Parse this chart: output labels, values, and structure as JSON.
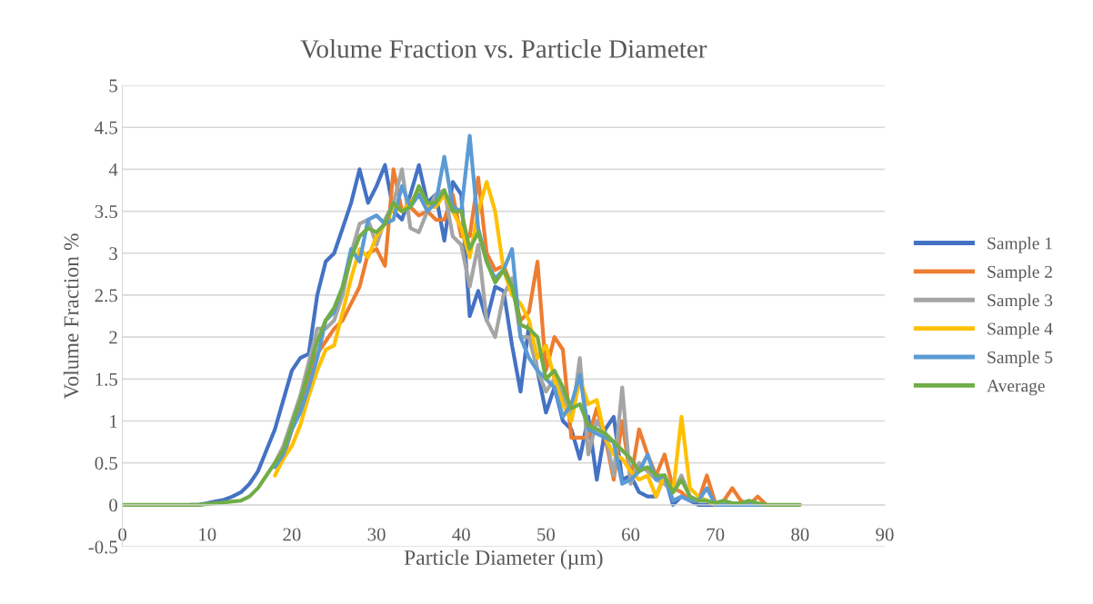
{
  "chart_data": {
    "type": "line",
    "title": "Volume Fraction vs. Particle Diameter",
    "xlabel": "Particle Diameter (µm)",
    "ylabel": "Volume Fraction %",
    "x": [
      0,
      1,
      2,
      3,
      4,
      5,
      6,
      7,
      8,
      9,
      10,
      11,
      12,
      13,
      14,
      15,
      16,
      17,
      18,
      19,
      20,
      21,
      22,
      23,
      24,
      25,
      26,
      27,
      28,
      29,
      30,
      31,
      32,
      33,
      34,
      35,
      36,
      37,
      38,
      39,
      40,
      41,
      42,
      43,
      44,
      45,
      46,
      47,
      48,
      49,
      50,
      51,
      52,
      53,
      54,
      55,
      56,
      57,
      58,
      59,
      60,
      61,
      62,
      63,
      64,
      65,
      66,
      67,
      68,
      69,
      70,
      71,
      72,
      73,
      74,
      75,
      76,
      77,
      78,
      79,
      80
    ],
    "series": [
      {
        "name": "Sample 1",
        "color": "#4472c4",
        "values": [
          null,
          null,
          null,
          null,
          null,
          null,
          null,
          null,
          0,
          0,
          0.02,
          0.04,
          0.06,
          0.1,
          0.15,
          0.25,
          0.4,
          0.65,
          0.9,
          1.25,
          1.6,
          1.75,
          1.8,
          2.5,
          2.9,
          3.0,
          3.3,
          3.6,
          4.0,
          3.6,
          3.8,
          4.05,
          3.5,
          3.4,
          3.7,
          4.05,
          3.6,
          3.7,
          3.15,
          3.85,
          3.7,
          2.25,
          2.55,
          2.2,
          2.6,
          2.55,
          1.9,
          1.35,
          2.15,
          1.6,
          1.1,
          1.4,
          1.0,
          0.9,
          0.55,
          1.05,
          0.3,
          0.9,
          1.05,
          0.3,
          0.35,
          0.15,
          0.1,
          0.1,
          0.35,
          0,
          0.1,
          0.05,
          0,
          0,
          0,
          0,
          0,
          0,
          0,
          0,
          0,
          null,
          null,
          null,
          null
        ]
      },
      {
        "name": "Sample 2",
        "color": "#ed7d31",
        "values": [
          null,
          null,
          null,
          null,
          null,
          null,
          null,
          null,
          null,
          null,
          null,
          null,
          null,
          null,
          null,
          null,
          null,
          null,
          0.45,
          0.55,
          0.9,
          1.2,
          1.55,
          1.8,
          1.95,
          2.1,
          2.2,
          2.4,
          2.6,
          3.0,
          3.05,
          2.85,
          4.0,
          3.5,
          3.55,
          3.45,
          3.5,
          3.4,
          3.4,
          3.7,
          3.2,
          3.2,
          3.9,
          3.0,
          2.8,
          2.85,
          2.6,
          2.2,
          2.3,
          2.9,
          1.6,
          2.0,
          1.85,
          0.8,
          0.8,
          0.8,
          1.15,
          0.8,
          0.3,
          1.0,
          0.3,
          0.9,
          0.6,
          0.35,
          0.6,
          0.2,
          0.15,
          0.05,
          0.05,
          0.35,
          0.02,
          0.05,
          0.2,
          0.05,
          0,
          0.1,
          0,
          null,
          null,
          null,
          null
        ]
      },
      {
        "name": "Sample 3",
        "color": "#a5a5a5",
        "values": [
          null,
          null,
          null,
          null,
          null,
          null,
          null,
          null,
          null,
          null,
          null,
          null,
          null,
          null,
          null,
          null,
          null,
          null,
          0.5,
          0.7,
          1.0,
          1.3,
          1.7,
          2.1,
          2.1,
          2.2,
          2.5,
          3.0,
          3.35,
          3.4,
          3.1,
          3.4,
          3.6,
          4.0,
          3.3,
          3.25,
          3.5,
          3.7,
          3.75,
          3.2,
          3.1,
          2.6,
          3.1,
          2.2,
          2.0,
          2.5,
          2.7,
          2.0,
          2.0,
          1.6,
          1.35,
          1.5,
          1.3,
          1.0,
          1.75,
          0.6,
          1.0,
          0.85,
          0.35,
          1.4,
          0.25,
          0.5,
          0.4,
          0.3,
          0.25,
          0.15,
          0.35,
          0.1,
          0.05,
          0.05,
          0,
          0,
          0,
          0,
          0,
          0,
          0,
          null,
          null,
          null,
          null
        ]
      },
      {
        "name": "Sample 4",
        "color": "#ffc000",
        "values": [
          null,
          null,
          null,
          null,
          null,
          null,
          null,
          null,
          null,
          null,
          null,
          null,
          null,
          null,
          null,
          null,
          null,
          null,
          0.35,
          0.55,
          0.7,
          0.95,
          1.3,
          1.6,
          1.85,
          1.9,
          2.3,
          2.7,
          3.05,
          2.95,
          3.2,
          3.35,
          3.55,
          3.5,
          3.6,
          3.75,
          3.55,
          3.55,
          3.7,
          3.5,
          3.3,
          2.95,
          3.5,
          3.85,
          3.5,
          2.8,
          2.5,
          2.4,
          2.2,
          1.75,
          1.9,
          1.5,
          1.2,
          1.0,
          1.5,
          1.2,
          1.25,
          0.8,
          0.6,
          0.55,
          0.4,
          0.3,
          0.35,
          0.1,
          0.35,
          0.15,
          1.05,
          0.2,
          0.1,
          0.05,
          0,
          null,
          null,
          null,
          null,
          null,
          null,
          null,
          null,
          null,
          null
        ]
      },
      {
        "name": "Sample 5",
        "color": "#5b9bd5",
        "values": [
          null,
          null,
          null,
          null,
          null,
          null,
          null,
          null,
          null,
          null,
          null,
          null,
          null,
          null,
          null,
          null,
          null,
          null,
          0.45,
          0.6,
          0.9,
          1.1,
          1.4,
          1.75,
          2.2,
          2.3,
          2.6,
          3.05,
          2.9,
          3.4,
          3.45,
          3.35,
          3.4,
          3.8,
          3.55,
          3.7,
          3.5,
          3.6,
          4.15,
          3.55,
          3.5,
          4.4,
          3.3,
          2.9,
          2.7,
          2.8,
          3.05,
          2.0,
          1.75,
          1.6,
          1.5,
          1.4,
          1.05,
          1.2,
          1.55,
          0.9,
          0.85,
          0.8,
          0.75,
          0.25,
          0.3,
          0.4,
          0.6,
          0.3,
          0.35,
          0.05,
          0.1,
          0.05,
          0.05,
          0.2,
          0,
          0,
          0,
          0,
          0,
          0,
          0,
          null,
          null,
          null,
          null
        ]
      },
      {
        "name": "Average",
        "color": "#70ad47",
        "values": [
          0,
          0,
          0,
          0,
          0,
          0,
          0,
          0,
          0,
          0,
          0.01,
          0.02,
          0.03,
          0.04,
          0.05,
          0.1,
          0.2,
          0.35,
          0.5,
          0.65,
          0.95,
          1.25,
          1.6,
          1.95,
          2.2,
          2.35,
          2.6,
          2.95,
          3.2,
          3.3,
          3.25,
          3.35,
          3.6,
          3.5,
          3.55,
          3.8,
          3.6,
          3.6,
          3.75,
          3.5,
          3.5,
          3.05,
          3.25,
          2.9,
          2.65,
          2.8,
          2.6,
          2.15,
          2.1,
          2.0,
          1.5,
          1.6,
          1.4,
          1.15,
          1.2,
          0.95,
          0.9,
          0.85,
          0.75,
          0.65,
          0.55,
          0.4,
          0.45,
          0.35,
          0.35,
          0.15,
          0.3,
          0.1,
          0.05,
          0.05,
          0.02,
          0.05,
          0.02,
          0.02,
          0.05,
          0.02,
          0,
          0,
          0,
          0,
          0
        ]
      }
    ],
    "xlim": [
      0,
      90
    ],
    "xticks": [
      0,
      10,
      20,
      30,
      40,
      50,
      60,
      70,
      80,
      90
    ],
    "ylim": [
      -0.5,
      5
    ],
    "yticks": [
      -0.5,
      0,
      0.5,
      1,
      1.5,
      2,
      2.5,
      3,
      3.5,
      4,
      4.5,
      5
    ],
    "grid": "y",
    "legend": "right",
    "marker": "none",
    "line_style": "solid"
  }
}
